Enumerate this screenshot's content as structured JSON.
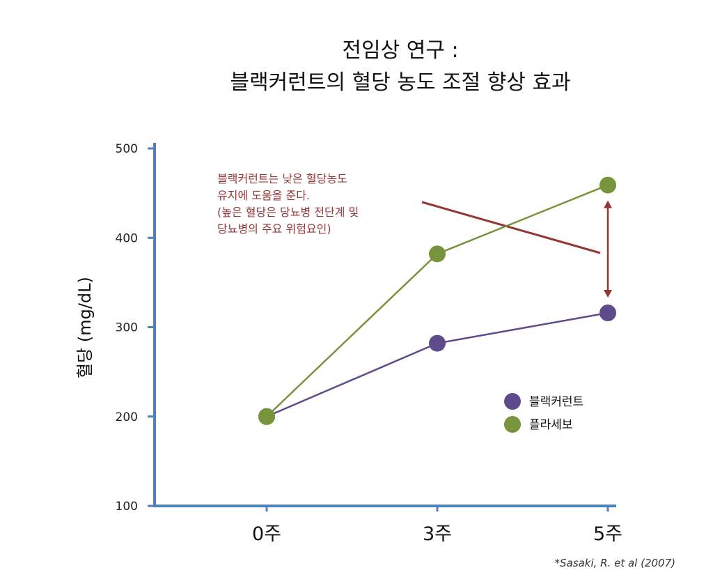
{
  "chart_data": {
    "type": "line",
    "title": [
      "전임상 연구 :",
      "블랙커런트의 혈당 농도 조절 향상 효과"
    ],
    "ylabel": "혈당 (mg/dL)",
    "xlabel": "",
    "categories": [
      "0주",
      "3주",
      "5주"
    ],
    "ylim": [
      100,
      500
    ],
    "yticks": [
      100,
      200,
      300,
      400,
      500
    ],
    "series": [
      {
        "name": "블랙커런트",
        "values": [
          200,
          282,
          316
        ],
        "color": "#5f4b8b"
      },
      {
        "name": "플라세보",
        "values": [
          200,
          382,
          459
        ],
        "color": "#77933c"
      }
    ],
    "legend": "right-inside",
    "grid": false,
    "axis_color": "#4f81bd",
    "annotation": {
      "lines": [
        "블랙커런트는 낮은 혈당농도",
        "유지에 도움을 준다.",
        "(높은 혈당은 당뇨병 전단계 및",
        "당뇨병의 주요 위험요인)"
      ],
      "color": "#943634"
    },
    "citation": "*Sasaki, R. et al (2007)"
  }
}
